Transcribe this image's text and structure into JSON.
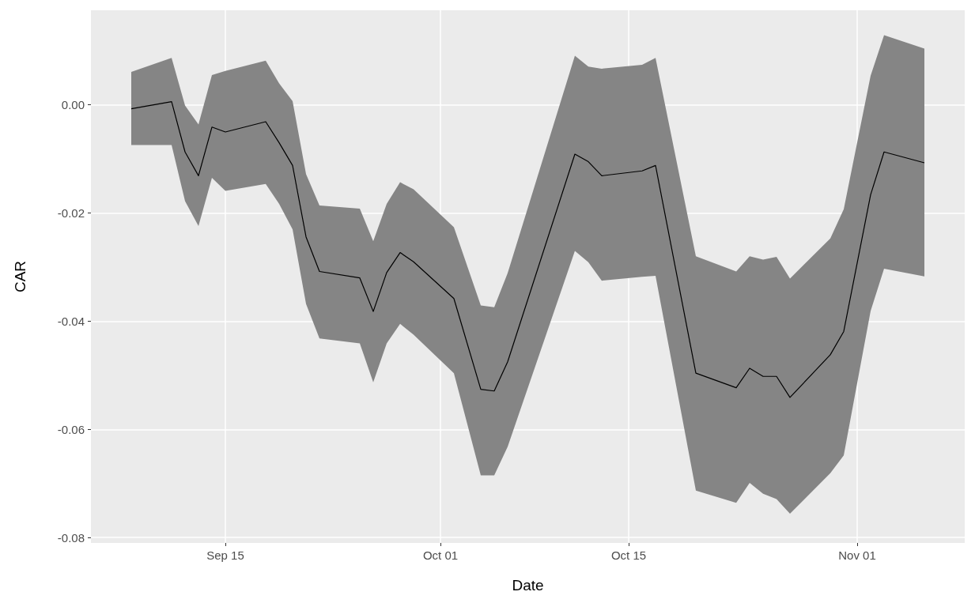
{
  "chart_data": {
    "type": "line",
    "xlabel": "Date",
    "ylabel": "CAR",
    "x": [
      "--09-08",
      "--09-11",
      "--09-12",
      "--09-13",
      "--09-14",
      "--09-15",
      "--09-18",
      "--09-19",
      "--09-20",
      "--09-21",
      "--09-22",
      "--09-25",
      "--09-26",
      "--09-27",
      "--09-28",
      "--09-29",
      "--10-02",
      "--10-04",
      "--10-05",
      "--10-06",
      "--10-11",
      "--10-12",
      "--10-13",
      "--10-16",
      "--10-17",
      "--10-20",
      "--10-23",
      "--10-24",
      "--10-25",
      "--10-26",
      "--10-27",
      "--10-30",
      "--10-31",
      "--11-02",
      "--11-03",
      "--11-06"
    ],
    "series": [
      {
        "color": "#000000",
        "values": [
          -0.0007,
          0.0006,
          -0.0087,
          -0.0131,
          -0.0041,
          -0.005,
          -0.0031,
          -0.007,
          -0.0112,
          -0.0244,
          -0.0308,
          -0.032,
          -0.0382,
          -0.031,
          -0.0273,
          -0.029,
          -0.0358,
          -0.0526,
          -0.0529,
          -0.0475,
          -0.0091,
          -0.0105,
          -0.0131,
          -0.0122,
          -0.0112,
          -0.0496,
          -0.0523,
          -0.0487,
          -0.0502,
          -0.0502,
          -0.0541,
          -0.0462,
          -0.0419,
          -0.0166,
          -0.0087,
          -0.0107
        ],
        "upper": [
          0.0061,
          0.0087,
          -0.0001,
          -0.0036,
          0.0055,
          0.0063,
          0.0082,
          0.004,
          0.0007,
          -0.0128,
          -0.0186,
          -0.0192,
          -0.0252,
          -0.0183,
          -0.0143,
          -0.0156,
          -0.0226,
          -0.0371,
          -0.0374,
          -0.0311,
          0.0091,
          0.0071,
          0.0067,
          0.0074,
          0.0087,
          -0.028,
          -0.0308,
          -0.028,
          -0.0286,
          -0.0281,
          -0.0321,
          -0.0247,
          -0.0193,
          0.0054,
          0.0129,
          0.0104
        ],
        "lower": [
          -0.0074,
          -0.0074,
          -0.0178,
          -0.0224,
          -0.0135,
          -0.0159,
          -0.0146,
          -0.0183,
          -0.023,
          -0.0368,
          -0.0432,
          -0.0441,
          -0.0513,
          -0.0441,
          -0.0405,
          -0.0425,
          -0.0496,
          -0.0685,
          -0.0685,
          -0.0632,
          -0.027,
          -0.0291,
          -0.0325,
          -0.0318,
          -0.0316,
          -0.0713,
          -0.0736,
          -0.0699,
          -0.0719,
          -0.0729,
          -0.0756,
          -0.0681,
          -0.0648,
          -0.0381,
          -0.0303,
          -0.0317
        ]
      }
    ],
    "xlim": [
      "--09-05",
      "--11-09"
    ],
    "xticks": [
      {
        "value": "--09-15",
        "label": "Sep 15"
      },
      {
        "value": "--10-01",
        "label": "Oct 01"
      },
      {
        "value": "--10-15",
        "label": "Oct 15"
      },
      {
        "value": "--11-01",
        "label": "Nov 01"
      }
    ],
    "ylim": [
      -0.081,
      0.0175
    ],
    "yticks": [
      {
        "value": -0.08,
        "label": "-0.08"
      },
      {
        "value": -0.06,
        "label": "-0.06"
      },
      {
        "value": -0.04,
        "label": "-0.04"
      },
      {
        "value": -0.02,
        "label": "-0.02"
      },
      {
        "value": 0,
        "label": "0.00"
      }
    ],
    "grid": true,
    "line_style": "solid",
    "marker": "none"
  }
}
